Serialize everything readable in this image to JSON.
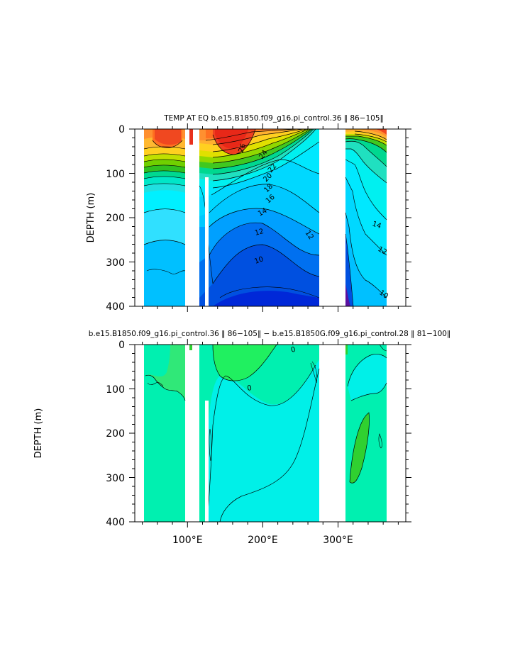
{
  "chart_data": [
    {
      "type": "heatmap",
      "title": "TEMP AT EQ  b.e15.B1850.f09_g16.pi_control.36  ‖ 86−105‖",
      "ylabel": "DEPTH (m)",
      "yticks": [
        "0",
        "100",
        "200",
        "300",
        "400"
      ],
      "ylim": [
        400,
        0
      ],
      "xlim": [
        30,
        390
      ],
      "contour_labels": [
        "26",
        "24",
        "22",
        "20",
        "18",
        "16",
        "14",
        "12",
        "12",
        "10",
        "14",
        "12",
        "10"
      ],
      "colors": {
        "warmest": "#e8301c",
        "warm": "#ff9030",
        "mid": "#ffd020",
        "thermocline": "#30c020",
        "cool": "#00e6ff",
        "cold": "#0050e0",
        "coldest": "#5a10a0"
      }
    },
    {
      "type": "heatmap",
      "title": "b.e15.B1850.f09_g16.pi_control.36  ‖ 86−105‖  −  b.e15.B1850G.f09_g16.pi_control.28  ‖ 81−100‖",
      "ylabel": "DEPTH (m)",
      "yticks": [
        "0",
        "100",
        "200",
        "300",
        "400"
      ],
      "xticks": [
        "100°E",
        "200°E",
        "300°E"
      ],
      "xtick_values": [
        100,
        200,
        300
      ],
      "ylim": [
        400,
        0
      ],
      "xlim": [
        30,
        390
      ],
      "contour_labels": [
        "0",
        "0"
      ],
      "colors": {
        "background": "#00f0b0",
        "negative": "#00f0e8",
        "positive": "#20f060",
        "strong_positive": "#30d030"
      }
    }
  ]
}
